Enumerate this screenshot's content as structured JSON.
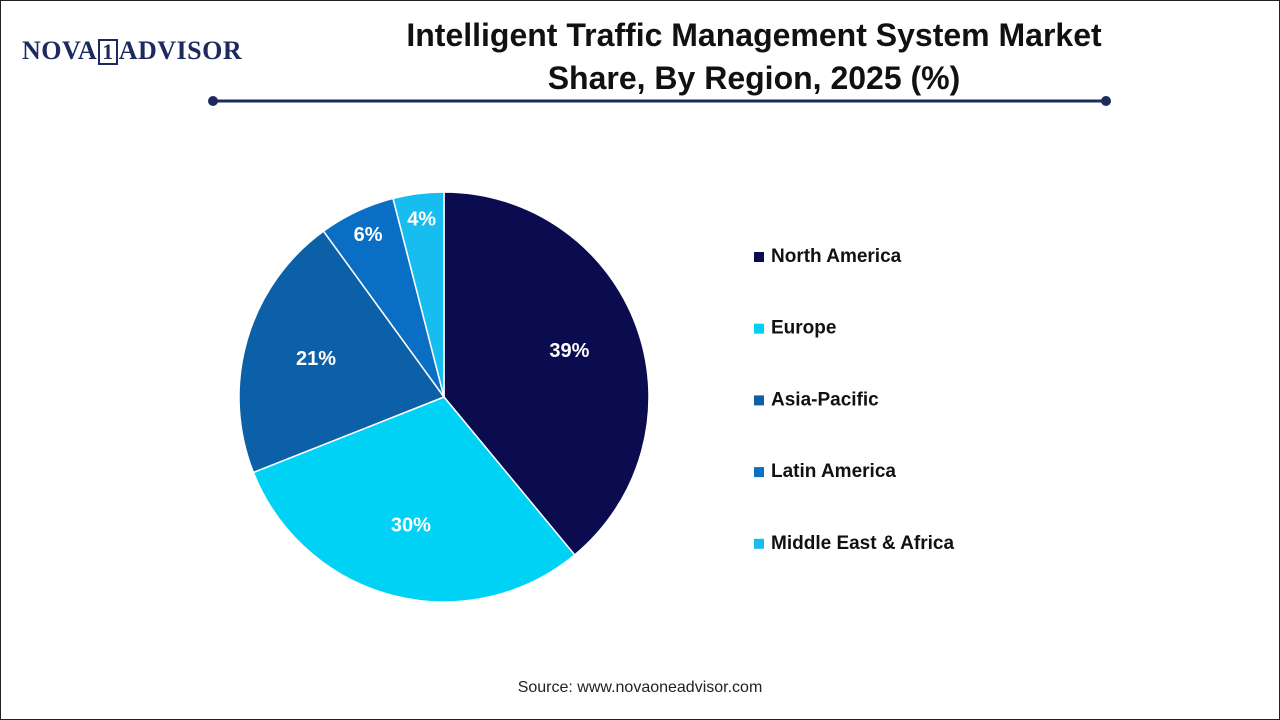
{
  "logo": {
    "left": "NOVA",
    "mid": "1",
    "right": "ADVISOR"
  },
  "chart_data": {
    "type": "pie",
    "title": "Intelligent Traffic Management System Market Share, By Region, 2025 (%)",
    "categories": [
      "North America",
      "Europe",
      "Asia-Pacific",
      "Latin America",
      "Middle East & Africa"
    ],
    "values": [
      39,
      30,
      21,
      6,
      4
    ],
    "value_labels": [
      "39%",
      "30%",
      "21%",
      "6%",
      "4%"
    ],
    "colors": [
      "#0b0b50",
      "#00d2f6",
      "#0b60a8",
      "#0a6fc4",
      "#18bdf0"
    ]
  },
  "source": "Source: www.novaoneadvisor.com"
}
